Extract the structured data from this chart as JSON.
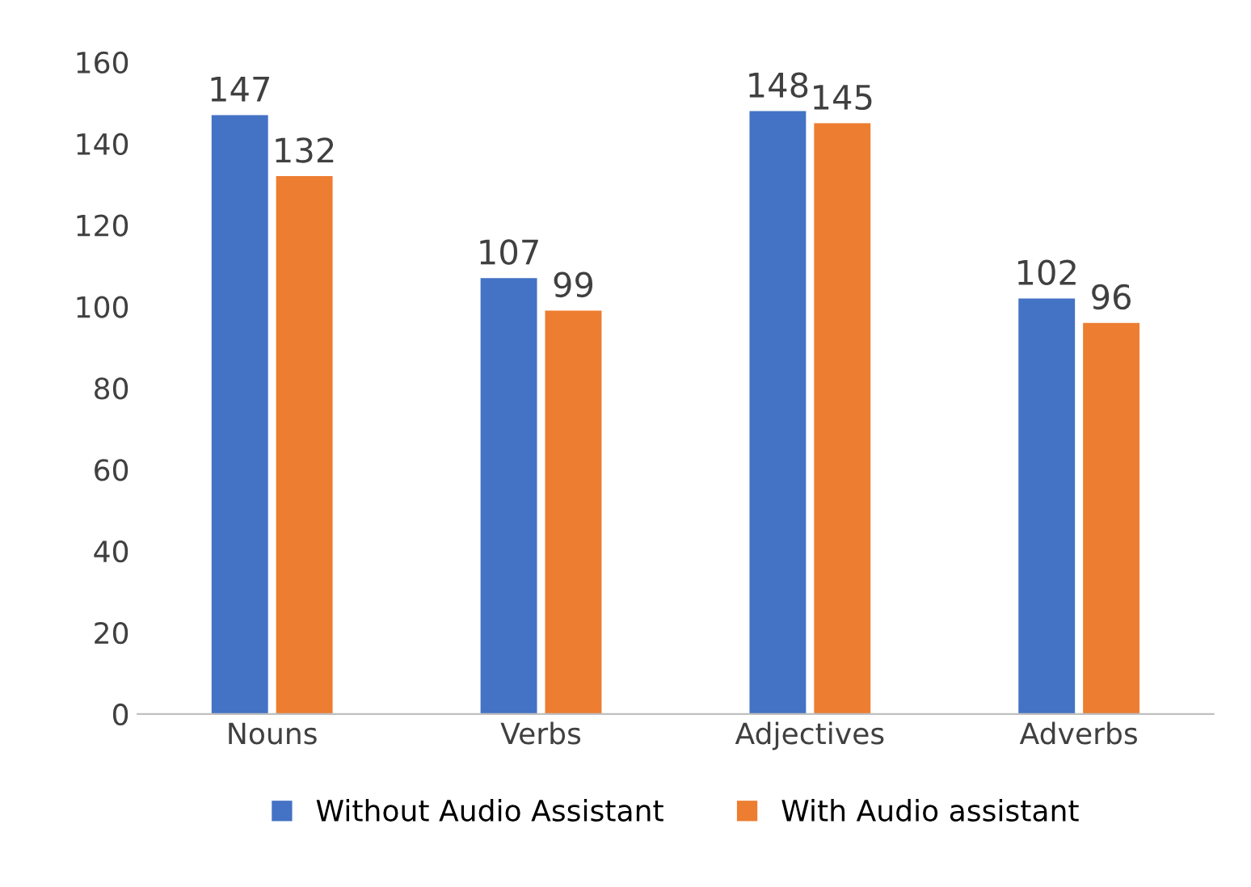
{
  "chart_data": {
    "type": "bar",
    "categories": [
      "Nouns",
      "Verbs",
      "Adjectives",
      "Adverbs"
    ],
    "series": [
      {
        "name": "Without Audio Assistant",
        "color": "#4472c4",
        "values": [
          147,
          107,
          148,
          102
        ]
      },
      {
        "name": "With Audio assistant",
        "color": "#ed7d31",
        "values": [
          132,
          99,
          145,
          96
        ]
      }
    ],
    "ylim": [
      0,
      160
    ],
    "yticks": [
      0,
      20,
      40,
      60,
      80,
      100,
      120,
      140,
      160
    ],
    "grid": false,
    "legend": "bottom",
    "data_labels": true
  }
}
